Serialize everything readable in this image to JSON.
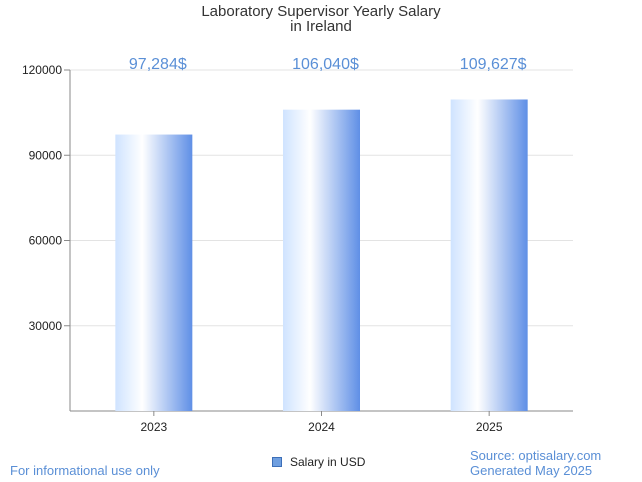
{
  "chart_data": {
    "type": "bar",
    "title_lines": [
      "Laboratory Supervisor Yearly Salary",
      "in Ireland"
    ],
    "categories": [
      "2023",
      "2024",
      "2025"
    ],
    "series": [
      {
        "name": "Salary in USD",
        "values": [
          97284,
          106040,
          109627
        ]
      }
    ],
    "data_labels": [
      "97,284$",
      "106,040$",
      "109,627$"
    ],
    "y_ticks": [
      30000,
      60000,
      90000,
      120000
    ],
    "y_tick_labels": [
      "30000",
      "60000",
      "90000",
      "120000"
    ],
    "ylim": [
      0,
      120000
    ],
    "grid": true,
    "legend_position": "bottom-center",
    "colors": {
      "bar_light": "#ffffff",
      "bar_mid": "#cfe3ff",
      "bar_dark": "#5f8fe6",
      "data_label": "#5a8fd6",
      "grid": "#e3e3e3",
      "axis": "#8a8a8a",
      "tick_text": "#222222"
    }
  },
  "footer": {
    "left_note": "For informational use only",
    "source": "Source: optisalary.com",
    "generated": "Generated May 2025"
  }
}
